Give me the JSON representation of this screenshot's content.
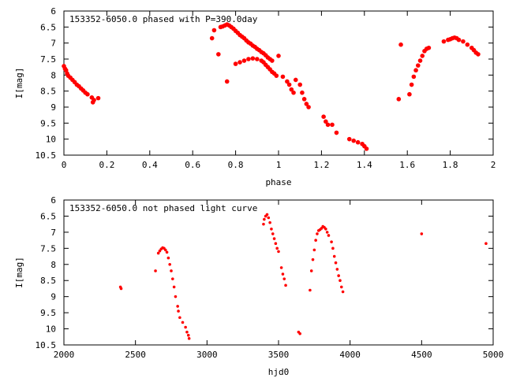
{
  "chart_data": [
    {
      "type": "scatter",
      "title": "153352-6050.0 phased with P=390.0day",
      "xlabel": "phase",
      "ylabel": "I[mag]",
      "xlim": [
        0,
        2
      ],
      "ylim": [
        10.5,
        6
      ],
      "y_inverted": true,
      "x_ticks": [
        "0",
        "0.2",
        "0.4",
        "0.6",
        "0.8",
        "1",
        "1.2",
        "1.4",
        "1.6",
        "1.8",
        "2"
      ],
      "y_ticks": [
        "6",
        "6.5",
        "7",
        "7.5",
        "8",
        "8.5",
        "9",
        "9.5",
        "10",
        "10.5"
      ],
      "grid": false,
      "marker_color": "#ff0000",
      "series": [
        {
          "points": [
            [
              0.0,
              7.72
            ],
            [
              0.005,
              7.8
            ],
            [
              0.01,
              7.85
            ],
            [
              0.015,
              7.95
            ],
            [
              0.02,
              8.02
            ],
            [
              0.03,
              8.08
            ],
            [
              0.04,
              8.15
            ],
            [
              0.05,
              8.22
            ],
            [
              0.06,
              8.3
            ],
            [
              0.07,
              8.35
            ],
            [
              0.08,
              8.42
            ],
            [
              0.09,
              8.48
            ],
            [
              0.1,
              8.55
            ],
            [
              0.11,
              8.6
            ],
            [
              0.13,
              8.7
            ],
            [
              0.135,
              8.85
            ],
            [
              0.14,
              8.78
            ],
            [
              0.16,
              8.72
            ],
            [
              0.69,
              6.85
            ],
            [
              0.7,
              6.6
            ],
            [
              0.72,
              7.35
            ],
            [
              0.73,
              6.5
            ],
            [
              0.74,
              6.48
            ],
            [
              0.75,
              6.45
            ],
            [
              0.76,
              6.42
            ],
            [
              0.77,
              6.45
            ],
            [
              0.78,
              6.5
            ],
            [
              0.79,
              6.55
            ],
            [
              0.8,
              6.62
            ],
            [
              0.81,
              6.68
            ],
            [
              0.82,
              6.75
            ],
            [
              0.83,
              6.8
            ],
            [
              0.84,
              6.85
            ],
            [
              0.85,
              6.92
            ],
            [
              0.86,
              6.98
            ],
            [
              0.87,
              7.02
            ],
            [
              0.88,
              7.08
            ],
            [
              0.89,
              7.12
            ],
            [
              0.9,
              7.18
            ],
            [
              0.91,
              7.22
            ],
            [
              0.92,
              7.28
            ],
            [
              0.93,
              7.32
            ],
            [
              0.94,
              7.38
            ],
            [
              0.95,
              7.45
            ],
            [
              0.96,
              7.5
            ],
            [
              0.97,
              7.55
            ],
            [
              0.76,
              8.2
            ],
            [
              0.8,
              7.65
            ],
            [
              0.82,
              7.6
            ],
            [
              0.84,
              7.55
            ],
            [
              0.86,
              7.5
            ],
            [
              0.88,
              7.48
            ],
            [
              0.9,
              7.5
            ],
            [
              0.92,
              7.55
            ],
            [
              0.93,
              7.6
            ],
            [
              0.94,
              7.68
            ],
            [
              0.95,
              7.75
            ],
            [
              0.96,
              7.82
            ],
            [
              0.97,
              7.9
            ],
            [
              0.98,
              7.95
            ],
            [
              0.99,
              8.02
            ],
            [
              1.0,
              7.4
            ],
            [
              1.02,
              8.05
            ],
            [
              1.04,
              8.2
            ],
            [
              1.05,
              8.3
            ],
            [
              1.06,
              8.45
            ],
            [
              1.07,
              8.55
            ],
            [
              1.08,
              8.15
            ],
            [
              1.1,
              8.3
            ],
            [
              1.11,
              8.55
            ],
            [
              1.12,
              8.75
            ],
            [
              1.13,
              8.9
            ],
            [
              1.14,
              9.0
            ],
            [
              1.21,
              9.3
            ],
            [
              1.22,
              9.45
            ],
            [
              1.23,
              9.55
            ],
            [
              1.25,
              9.55
            ],
            [
              1.27,
              9.8
            ],
            [
              1.33,
              10.0
            ],
            [
              1.35,
              10.05
            ],
            [
              1.37,
              10.1
            ],
            [
              1.39,
              10.15
            ],
            [
              1.4,
              10.22
            ],
            [
              1.41,
              10.3
            ],
            [
              1.56,
              8.75
            ],
            [
              1.57,
              7.05
            ],
            [
              1.61,
              8.6
            ],
            [
              1.62,
              8.3
            ],
            [
              1.63,
              8.05
            ],
            [
              1.64,
              7.85
            ],
            [
              1.65,
              7.7
            ],
            [
              1.66,
              7.55
            ],
            [
              1.67,
              7.4
            ],
            [
              1.68,
              7.25
            ],
            [
              1.69,
              7.18
            ],
            [
              1.7,
              7.15
            ],
            [
              1.77,
              6.95
            ],
            [
              1.79,
              6.9
            ],
            [
              1.8,
              6.88
            ],
            [
              1.81,
              6.85
            ],
            [
              1.82,
              6.83
            ],
            [
              1.83,
              6.85
            ],
            [
              1.84,
              6.9
            ],
            [
              1.86,
              6.95
            ],
            [
              1.88,
              7.05
            ],
            [
              1.9,
              7.15
            ],
            [
              1.91,
              7.22
            ],
            [
              1.92,
              7.3
            ],
            [
              1.93,
              7.35
            ]
          ]
        }
      ]
    },
    {
      "type": "scatter",
      "title": "153352-6050.0 not phased light curve",
      "xlabel": "hjd0",
      "ylabel": "I[mag]",
      "xlim": [
        2000,
        5000
      ],
      "ylim": [
        10.5,
        6
      ],
      "y_inverted": true,
      "x_ticks": [
        "2000",
        "2500",
        "3000",
        "3500",
        "4000",
        "4500",
        "5000"
      ],
      "y_ticks": [
        "6",
        "6.5",
        "7",
        "7.5",
        "8",
        "8.5",
        "9",
        "9.5",
        "10",
        "10.5"
      ],
      "grid": false,
      "marker_color": "#ff0000",
      "series": [
        {
          "points": [
            [
              2395,
              8.7
            ],
            [
              2400,
              8.75
            ],
            [
              2640,
              8.2
            ],
            [
              2660,
              7.65
            ],
            [
              2670,
              7.58
            ],
            [
              2680,
              7.52
            ],
            [
              2690,
              7.48
            ],
            [
              2700,
              7.5
            ],
            [
              2710,
              7.55
            ],
            [
              2720,
              7.62
            ],
            [
              2730,
              7.8
            ],
            [
              2740,
              8.0
            ],
            [
              2750,
              8.2
            ],
            [
              2760,
              8.45
            ],
            [
              2770,
              8.7
            ],
            [
              2780,
              9.0
            ],
            [
              2795,
              9.3
            ],
            [
              2800,
              9.45
            ],
            [
              2810,
              9.65
            ],
            [
              2830,
              9.8
            ],
            [
              2850,
              9.95
            ],
            [
              2860,
              10.1
            ],
            [
              2870,
              10.2
            ],
            [
              2875,
              10.3
            ],
            [
              3395,
              6.75
            ],
            [
              3400,
              6.6
            ],
            [
              3410,
              6.5
            ],
            [
              3420,
              6.45
            ],
            [
              3430,
              6.55
            ],
            [
              3440,
              6.7
            ],
            [
              3450,
              6.9
            ],
            [
              3460,
              7.05
            ],
            [
              3470,
              7.2
            ],
            [
              3480,
              7.35
            ],
            [
              3490,
              7.5
            ],
            [
              3500,
              7.6
            ],
            [
              3520,
              8.1
            ],
            [
              3530,
              8.3
            ],
            [
              3540,
              8.45
            ],
            [
              3550,
              8.65
            ],
            [
              3640,
              10.1
            ],
            [
              3650,
              10.15
            ],
            [
              3720,
              8.8
            ],
            [
              3730,
              8.2
            ],
            [
              3740,
              7.85
            ],
            [
              3750,
              7.55
            ],
            [
              3760,
              7.25
            ],
            [
              3770,
              7.05
            ],
            [
              3780,
              6.95
            ],
            [
              3790,
              6.92
            ],
            [
              3800,
              6.88
            ],
            [
              3810,
              6.82
            ],
            [
              3820,
              6.85
            ],
            [
              3830,
              6.9
            ],
            [
              3840,
              7.0
            ],
            [
              3850,
              7.1
            ],
            [
              3870,
              7.3
            ],
            [
              3880,
              7.5
            ],
            [
              3890,
              7.75
            ],
            [
              3900,
              7.95
            ],
            [
              3910,
              8.15
            ],
            [
              3920,
              8.35
            ],
            [
              3930,
              8.5
            ],
            [
              3940,
              8.7
            ],
            [
              3950,
              8.85
            ],
            [
              4500,
              7.05
            ],
            [
              4950,
              7.35
            ]
          ]
        }
      ]
    }
  ]
}
